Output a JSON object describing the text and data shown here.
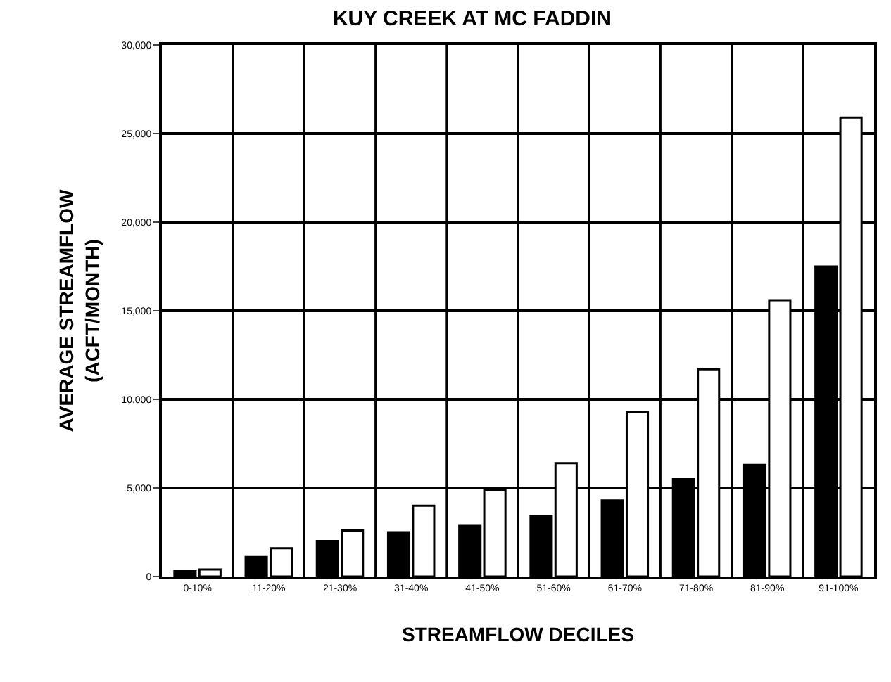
{
  "chart_data": {
    "type": "bar",
    "title": "KUY CREEK AT MC FADDIN",
    "xlabel": "STREAMFLOW DECILES",
    "ylabel": "AVERAGE STREAMFLOW\n(ACFT/MONTH)",
    "categories": [
      "0-10%",
      "11-20%",
      "21-30%",
      "31-40%",
      "41-50%",
      "51-60%",
      "61-70%",
      "71-80%",
      "81-90%",
      "91-100%"
    ],
    "series": [
      {
        "color": "#000000",
        "values": [
          300,
          1100,
          2000,
          2500,
          2900,
          3400,
          4300,
          5500,
          6300,
          17500
        ]
      },
      {
        "color": "#ffffff",
        "values": [
          400,
          1600,
          2600,
          4000,
          4900,
          6400,
          9300,
          11700,
          15600,
          25900
        ]
      }
    ],
    "ylim": [
      0,
      30000
    ],
    "yticks": [
      0,
      {
        "value": 5000,
        "label": "5,000"
      },
      {
        "value": 10000,
        "label": "10,000"
      },
      {
        "value": 15000,
        "label": "15,000"
      },
      {
        "value": 20000,
        "label": "20,000"
      },
      {
        "value": 25000,
        "label": "25,000"
      },
      {
        "value": 30000,
        "label": "30,000"
      }
    ],
    "grid": true,
    "legend": false
  }
}
